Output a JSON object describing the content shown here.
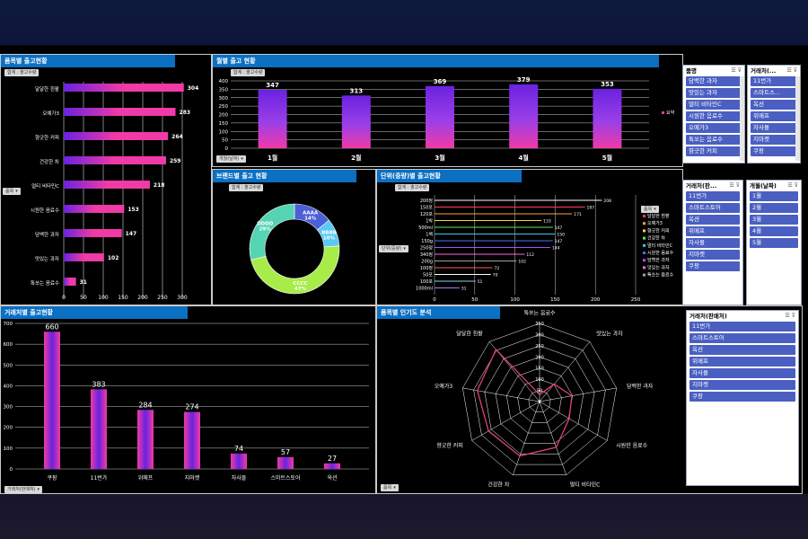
{
  "colors": {
    "accent": "#0b6fc2",
    "bar_pink": "#f03aa6",
    "bar_purple": "#6a22e0",
    "slicer_item": "#4a5fc1",
    "donut_blue": "#4b5fd6",
    "donut_lightblue": "#5bc8f5",
    "donut_green": "#a8ec4a",
    "donut_teal": "#55d4b4",
    "radar_line": "#e0407a"
  },
  "panels": {
    "product": {
      "title": "품목별 출고현황",
      "tag": "합계 : 출고수량",
      "tag2": "품목"
    },
    "month": {
      "title": "월별 출고 현황",
      "tag": "합계 : 출고수량",
      "tag2": "개월(날짜)",
      "legend": "요약"
    },
    "brand": {
      "title": "브랜드별 출고 현황",
      "tag": "합계 : 출고수량"
    },
    "unit": {
      "title": "단위(중량)별 출고현황",
      "tag": "합계 : 출고수량",
      "tag2": "단위(중량)",
      "tag3": "품목"
    },
    "store": {
      "title": "거래처별 출고현황",
      "tag": "거래처(판매처)"
    },
    "radar": {
      "title": "품목별 인기도 분석",
      "tag": "품목"
    }
  },
  "chart_data": [
    {
      "type": "bar",
      "orientation": "horizontal",
      "title": "품목별 출고현황",
      "categories": [
        "달달한 흰팥",
        "오예가3",
        "향긋한 커피",
        "건강한 차",
        "멀티 비타민C",
        "시원한 음료수",
        "담백한 과자",
        "맛있는 과자",
        "톡쏘는 음료수"
      ],
      "values": [
        304,
        283,
        264,
        259,
        218,
        153,
        147,
        102,
        31
      ],
      "xticks": [
        0,
        50,
        100,
        150,
        200,
        250,
        300
      ],
      "xlim": [
        0,
        300
      ]
    },
    {
      "type": "bar",
      "title": "월별 출고 현황",
      "categories": [
        "1월",
        "2월",
        "3월",
        "4월",
        "5월"
      ],
      "values": [
        347,
        313,
        369,
        379,
        353
      ],
      "yticks": [
        0,
        50,
        100,
        150,
        200,
        250,
        300,
        350,
        400
      ],
      "ylim": [
        0,
        400
      ],
      "legend": "요약"
    },
    {
      "type": "pie",
      "title": "브랜드별 출고 현황",
      "slices": [
        {
          "label": "AAAA",
          "value": 14,
          "text": "14%"
        },
        {
          "label": "BBBB",
          "value": 10,
          "text": "10%"
        },
        {
          "label": "CCCC",
          "value": 47,
          "text": "47%"
        },
        {
          "label": "DDDD",
          "value": 29,
          "text": "29%"
        }
      ]
    },
    {
      "type": "bar",
      "orientation": "horizontal",
      "title": "단위(중량)별 출고현황",
      "categories": [
        "200정",
        "150포",
        "120포",
        "1박",
        "500ml",
        "1팩",
        "150g",
        "250정",
        "340정",
        "200g",
        "100정",
        "50포",
        "100포",
        "1000ml"
      ],
      "values": [
        208,
        187,
        171,
        133,
        147,
        150,
        147,
        144,
        112,
        102,
        72,
        70,
        51,
        31
      ],
      "xticks": [
        0,
        50,
        100,
        150,
        200,
        250
      ],
      "xlim": [
        0,
        250
      ],
      "legend": [
        "달달한 흰팥",
        "오예가3",
        "향긋한 커피",
        "건강한 차",
        "멀티 비타민C",
        "시원한 음료수",
        "담백한 과자",
        "맛있는 과자",
        "톡쏘는 음료수"
      ]
    },
    {
      "type": "bar",
      "title": "거래처별 출고현황",
      "categories": [
        "쿠팡",
        "11번가",
        "위메프",
        "지마켓",
        "자사몰",
        "스마트스토어",
        "옥션"
      ],
      "values": [
        660,
        383,
        284,
        274,
        74,
        57,
        27
      ],
      "yticks": [
        0,
        100,
        200,
        300,
        400,
        500,
        600,
        700
      ],
      "ylim": [
        0,
        700
      ]
    },
    {
      "type": "radar",
      "title": "품목별 인기도 분석",
      "categories": [
        "톡쏘는 음료수",
        "맛있는 과자",
        "담백한 과자",
        "시원한 음료수",
        "멀티 비타민C",
        "건강한 차",
        "향긋한 커피",
        "오예가3",
        "달달한 흰팥"
      ],
      "values": [
        31,
        102,
        147,
        153,
        218,
        259,
        264,
        283,
        304
      ],
      "rticks": [
        0,
        50,
        100,
        150,
        200,
        250,
        300,
        350
      ],
      "rlim": [
        0,
        350
      ]
    }
  ],
  "slicers": {
    "product": {
      "title": "품명",
      "items": [
        "담백한 과자",
        "맛있는 과자",
        "멀티 비타민C",
        "시원한 음료수",
        "오예가3",
        "톡쏘는 음료수",
        "향긋한 커피"
      ]
    },
    "store_top": {
      "title": "거래처(...",
      "items": [
        "11번가",
        "스마트스...",
        "옥션",
        "위메프",
        "자사몰",
        "지마켓",
        "쿠팡"
      ]
    },
    "store_mid": {
      "title": "거래처(판...",
      "items": [
        "11번가",
        "스마트스토어",
        "옥션",
        "위메프",
        "자사몰",
        "지마켓",
        "쿠팡"
      ]
    },
    "month": {
      "title": "개월(날짜)",
      "items": [
        "1월",
        "2월",
        "3월",
        "4월",
        "5월"
      ]
    },
    "store_bottom": {
      "title": "거래처(판매처)",
      "items": [
        "11번가",
        "스마트스토어",
        "옥션",
        "위메프",
        "자사몰",
        "지마켓",
        "쿠팡"
      ]
    }
  }
}
